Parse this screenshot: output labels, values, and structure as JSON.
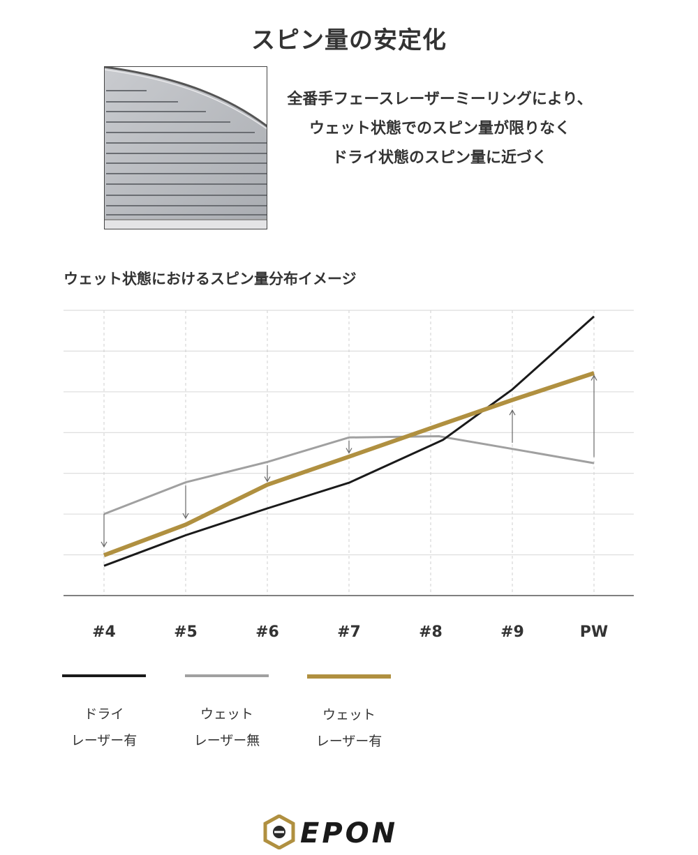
{
  "header": {
    "title": "スピン量の安定化"
  },
  "description": {
    "lines": [
      "全番手フェースレーザーミーリングにより、",
      "ウェット状態でのスピン量が限りなく",
      "ドライ状態のスピン量に近づく"
    ]
  },
  "chart_data": {
    "type": "line",
    "title": "ウェット状態におけるスピン量分布イメージ",
    "categories": [
      "#4",
      "#5",
      "#6",
      "#7",
      "#8",
      "#9",
      "PW"
    ],
    "ylim": [
      0,
      7
    ],
    "grid": true,
    "legend_placement": "bottom",
    "series": [
      {
        "name": "ドライ レーザー有",
        "label_lines": [
          "ドライ",
          "レーザー有"
        ],
        "color": "#1a1a1a",
        "points": [
          [
            0,
            0.73
          ],
          [
            1,
            1.48
          ],
          [
            2,
            2.14
          ],
          [
            3,
            2.77
          ],
          [
            4.15,
            3.82
          ],
          [
            5,
            5.06
          ],
          [
            6,
            6.85
          ]
        ]
      },
      {
        "name": "ウェット レーザー無",
        "label_lines": [
          "ウェット",
          "レーザー無"
        ],
        "color": "#a0a0a0",
        "points": [
          [
            0,
            2.0
          ],
          [
            1,
            2.78
          ],
          [
            2,
            3.28
          ],
          [
            3,
            3.88
          ],
          [
            4.1,
            3.91
          ],
          [
            5,
            3.6
          ],
          [
            6,
            3.25
          ]
        ]
      },
      {
        "name": "ウェット レーザー有",
        "label_lines": [
          "ウェット",
          "レーザー有"
        ],
        "color": "#b09040",
        "points": [
          [
            0,
            0.99
          ],
          [
            1,
            1.74
          ],
          [
            2,
            2.72
          ],
          [
            3,
            3.41
          ],
          [
            4,
            4.11
          ],
          [
            5,
            4.8
          ],
          [
            6,
            5.46
          ]
        ]
      }
    ],
    "annotations": [
      {
        "type": "arrow",
        "category": "#4",
        "from": 2.0,
        "to": 1.2
      },
      {
        "type": "arrow",
        "category": "#5",
        "from": 2.7,
        "to": 1.9
      },
      {
        "type": "arrow",
        "category": "#6",
        "from": 3.2,
        "to": 2.8
      },
      {
        "type": "arrow",
        "category": "#7",
        "from": 3.8,
        "to": 3.5
      },
      {
        "type": "arrow",
        "category": "#9",
        "from": 3.75,
        "to": 4.55
      },
      {
        "type": "arrow",
        "category": "PW",
        "from": 3.4,
        "to": 5.4
      }
    ]
  },
  "brand": {
    "logo_text": "EPON",
    "accent_color": "#b09040"
  }
}
